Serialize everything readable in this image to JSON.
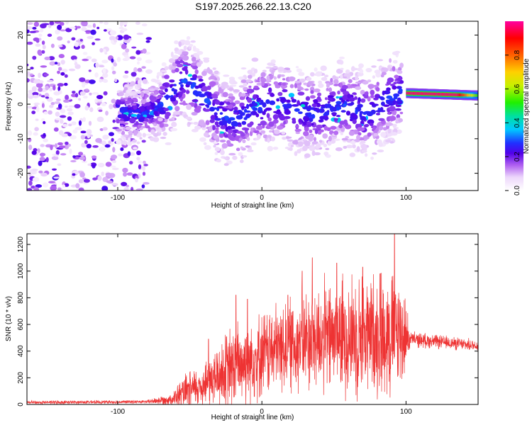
{
  "title": "S197.2025.266.22.13.C20",
  "chart_data": [
    {
      "type": "heatmap",
      "xlabel": "Height of straight line (km)",
      "ylabel": "Frequency (Hz)",
      "xlim": [
        -163,
        150
      ],
      "ylim": [
        -25,
        24
      ],
      "x_ticks": [
        -100,
        0,
        100
      ],
      "y_ticks": [
        -20,
        -10,
        0,
        10,
        20
      ],
      "colorbar": {
        "label": "Normalized spectral amplitude",
        "range": [
          0,
          1
        ],
        "ticks": [
          "0.0",
          "0.2",
          "0.4",
          "0.6",
          "0.8"
        ],
        "tick_values": [
          0,
          0.2,
          0.4,
          0.6,
          0.8
        ]
      },
      "ridge": [
        {
          "x": -163,
          "y": 3
        },
        {
          "x": -140,
          "y": 0
        },
        {
          "x": -120,
          "y": -2
        },
        {
          "x": -100,
          "y": -2
        },
        {
          "x": -85,
          "y": -3
        },
        {
          "x": -75,
          "y": -2
        },
        {
          "x": -65,
          "y": 2
        },
        {
          "x": -58,
          "y": 6
        },
        {
          "x": -52,
          "y": 7
        },
        {
          "x": -45,
          "y": 4
        },
        {
          "x": -38,
          "y": 1
        },
        {
          "x": -30,
          "y": -3
        },
        {
          "x": -22,
          "y": -5
        },
        {
          "x": -15,
          "y": -4
        },
        {
          "x": -5,
          "y": -1
        },
        {
          "x": 5,
          "y": 0
        },
        {
          "x": 15,
          "y": 0
        },
        {
          "x": 25,
          "y": -2
        },
        {
          "x": 40,
          "y": -3
        },
        {
          "x": 55,
          "y": 0
        },
        {
          "x": 65,
          "y": -2
        },
        {
          "x": 75,
          "y": -3
        },
        {
          "x": 85,
          "y": 1
        },
        {
          "x": 95,
          "y": 3
        },
        {
          "x": 100,
          "y": 3
        },
        {
          "x": 130,
          "y": 3
        },
        {
          "x": 150,
          "y": 2.5
        }
      ],
      "tone": {
        "x_start": 100,
        "x_end": 150,
        "freq_start": 3.2,
        "freq_end": 2.5,
        "amplitude_start": 0.97,
        "amplitude_end": 0.5
      }
    },
    {
      "type": "line",
      "xlabel": "Height of straight line (km)",
      "ylabel": "SNR (10 * v/v)",
      "xlim": [
        -163,
        150
      ],
      "ylim": [
        0,
        1280
      ],
      "x_ticks": [
        -100,
        0,
        100
      ],
      "y_ticks": [
        0,
        200,
        400,
        600,
        800,
        1000,
        1200
      ],
      "color": "#ee3333",
      "envelope": [
        {
          "x": -163,
          "base": 15,
          "spread": 15
        },
        {
          "x": -80,
          "base": 20,
          "spread": 15
        },
        {
          "x": -62,
          "base": 40,
          "spread": 60
        },
        {
          "x": -55,
          "base": 80,
          "spread": 150
        },
        {
          "x": -40,
          "base": 150,
          "spread": 200
        },
        {
          "x": -20,
          "base": 280,
          "spread": 400
        },
        {
          "x": 0,
          "base": 380,
          "spread": 380
        },
        {
          "x": 20,
          "base": 450,
          "spread": 420
        },
        {
          "x": 40,
          "base": 500,
          "spread": 500
        },
        {
          "x": 60,
          "base": 520,
          "spread": 550
        },
        {
          "x": 80,
          "base": 530,
          "spread": 550
        },
        {
          "x": 90,
          "base": 540,
          "spread": 600
        },
        {
          "x": 98,
          "base": 530,
          "spread": 450
        },
        {
          "x": 103,
          "base": 490,
          "spread": 70
        },
        {
          "x": 150,
          "base": 440,
          "spread": 50
        }
      ],
      "peaks": [
        {
          "x": -50,
          "y": 240
        },
        {
          "x": -37,
          "y": 490
        },
        {
          "x": -18,
          "y": 820
        },
        {
          "x": -10,
          "y": 790
        },
        {
          "x": 18,
          "y": 820
        },
        {
          "x": 28,
          "y": 1000
        },
        {
          "x": 35,
          "y": 1100
        },
        {
          "x": 52,
          "y": 1060
        },
        {
          "x": 70,
          "y": 1030
        },
        {
          "x": 82,
          "y": 980
        },
        {
          "x": 92,
          "y": 1280
        }
      ]
    }
  ]
}
